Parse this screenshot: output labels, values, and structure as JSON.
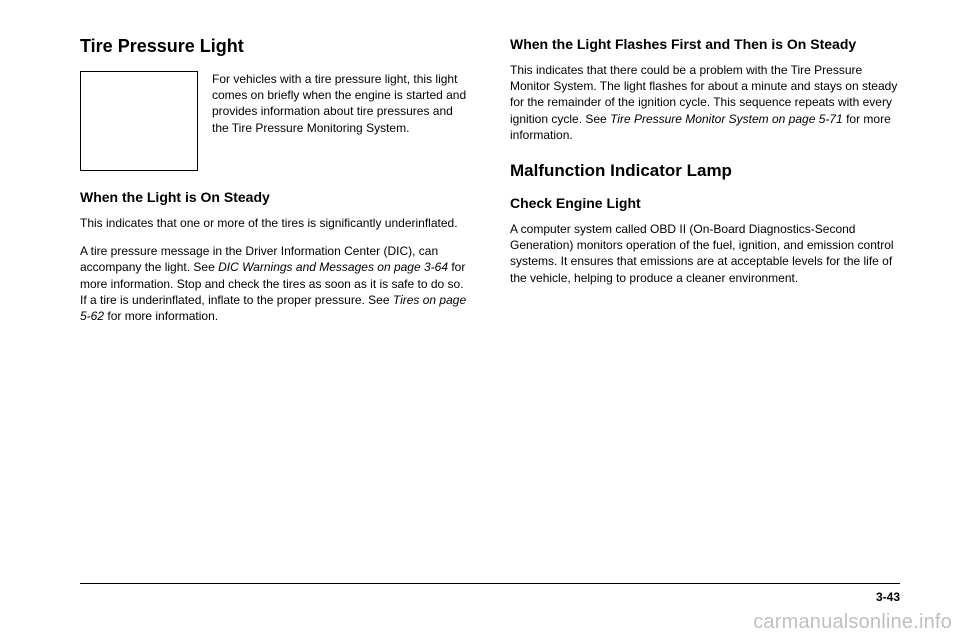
{
  "left": {
    "title": "Tire Pressure Light",
    "intro": "For vehicles with a tire pressure light, this light comes on briefly when the engine is started and provides information about tire pressures and the Tire Pressure Monitoring System.",
    "sub1_title": "When the Light is On Steady",
    "sub1_p1": "This indicates that one or more of the tires is significantly underinflated.",
    "sub1_p2a": "A tire pressure message in the Driver Information Center (DIC), can accompany the light. See ",
    "sub1_p2i1": "DIC Warnings and Messages on page 3-64",
    "sub1_p2b": " for more information. Stop and check the tires as soon as it is safe to do so. If a tire is underinflated, inflate to the proper pressure. See ",
    "sub1_p2i2": "Tires on page 5-62",
    "sub1_p2c": " for more information."
  },
  "right": {
    "sub2_title": "When the Light Flashes First and Then is On Steady",
    "sub2_p1a": "This indicates that there could be a problem with the Tire Pressure Monitor System. The light flashes for about a minute and stays on steady for the remainder of the ignition cycle. This sequence repeats with every ignition cycle. See ",
    "sub2_p1i": "Tire Pressure Monitor System on page 5-71",
    "sub2_p1b": " for more information.",
    "h1b": "Malfunction Indicator Lamp",
    "sub3_title": "Check Engine Light",
    "sub3_p1": "A computer system called OBD II (On-Board Diagnostics-Second Generation) monitors operation of the fuel, ignition, and emission control systems. It ensures that emissions are at acceptable levels for the life of the vehicle, helping to produce a cleaner environment."
  },
  "page_number": "3-43",
  "watermark": "carmanualsonline.info"
}
